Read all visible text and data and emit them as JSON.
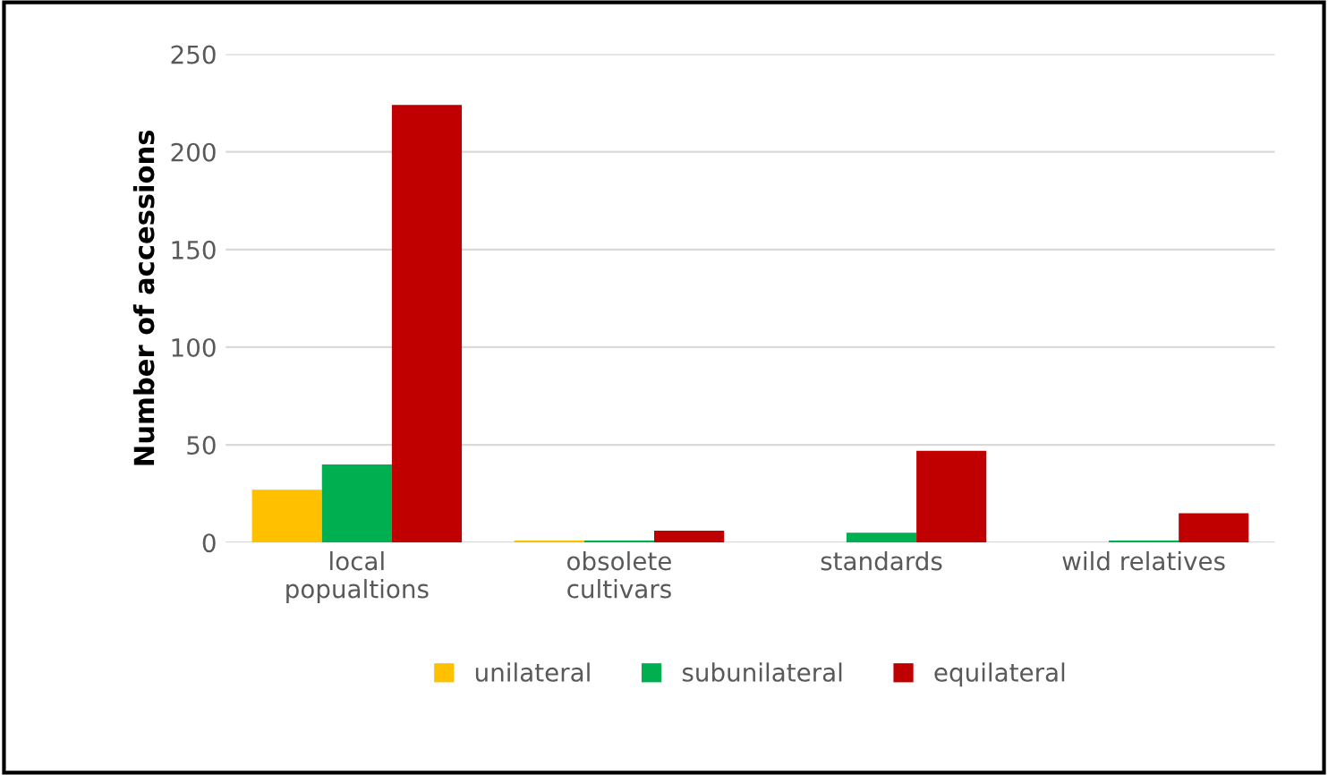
{
  "chart_data": {
    "type": "bar",
    "ylabel": "Number of accessions",
    "categories": [
      "local\npopualtions",
      "obsolete\ncultivars",
      "standards",
      "wild relatives"
    ],
    "series": [
      {
        "name": "unilateral",
        "color": "#ffc000",
        "values": [
          27,
          1,
          0,
          0
        ]
      },
      {
        "name": "subunilateral",
        "color": "#00b050",
        "values": [
          40,
          1,
          5,
          1
        ]
      },
      {
        "name": "equilateral",
        "color": "#c00000",
        "values": [
          224,
          6,
          47,
          15
        ]
      }
    ],
    "ylim": [
      0,
      250
    ],
    "yticks": [
      0,
      50,
      100,
      150,
      200,
      250
    ],
    "grid": "y",
    "legend": "bottom"
  }
}
